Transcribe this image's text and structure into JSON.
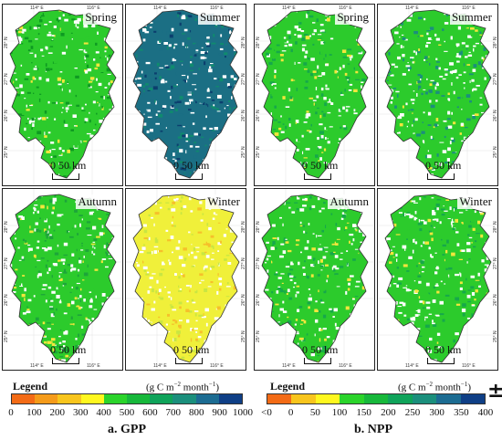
{
  "gpp": {
    "panels": [
      {
        "season": "Spring",
        "fill": "#2ccb2c",
        "speck": "#f3e63d",
        "dark": "#0e9a22"
      },
      {
        "season": "Summer",
        "fill": "#1b6f84",
        "speck": "#0b3f6e",
        "dark": "#0f8b6e"
      },
      {
        "season": "Autumn",
        "fill": "#2ccb2c",
        "speck": "#f3e63d",
        "dark": "#1da53a"
      },
      {
        "season": "Winter",
        "fill": "#f0f03a",
        "speck": "#f6c02a",
        "dark": "#c9e642"
      }
    ],
    "legend_title": "Legend",
    "unit": "(g C m",
    "unit_sup1": "−2",
    "unit_mid": " month",
    "unit_sup2": "−1",
    "unit_end": ")",
    "labels": [
      "0",
      "100",
      "200",
      "300",
      "400",
      "500",
      "600",
      "700",
      "800",
      "900",
      "1000"
    ],
    "colors": [
      "#f36b16",
      "#f59b1a",
      "#f8c51d",
      "#fff71f",
      "#2bd42b",
      "#17b83b",
      "#0fa35a",
      "#1b8f7c",
      "#1c6c92",
      "#0f3f86"
    ],
    "caption": "a. GPP"
  },
  "npp": {
    "panels": [
      {
        "season": "Spring",
        "fill": "#2ccb2c",
        "speck": "#f3e63d",
        "dark": "#16a84a"
      },
      {
        "season": "Summer",
        "fill": "#2ccb2c",
        "speck": "#f3e63d",
        "dark": "#1b8f7c"
      },
      {
        "season": "Autumn",
        "fill": "#2ccb2c",
        "speck": "#f3e63d",
        "dark": "#16a84a"
      },
      {
        "season": "Winter",
        "fill": "#2ccb2c",
        "speck": "#f3e63d",
        "dark": "#16a84a"
      }
    ],
    "legend_title": "Legend",
    "unit": "(g C m",
    "unit_sup1": "−2",
    "unit_mid": " month",
    "unit_sup2": "−1",
    "unit_end": ")",
    "labels": [
      "<0",
      "0",
      "50",
      "100",
      "150",
      "200",
      "250",
      "300",
      "350",
      "400"
    ],
    "colors": [
      "#f36b16",
      "#f8c51d",
      "#fff71f",
      "#2bd42b",
      "#17b83b",
      "#0fa35a",
      "#1b8f7c",
      "#1c6c92",
      "#0f3f86"
    ],
    "caption": "b. NPP"
  },
  "scale_text": "0   50 km",
  "ticks": {
    "lon": [
      "114° E",
      "116° E"
    ],
    "lat": [
      "28° N",
      "27° N",
      "26° N",
      "25° N"
    ]
  },
  "north_arrow": "±"
}
